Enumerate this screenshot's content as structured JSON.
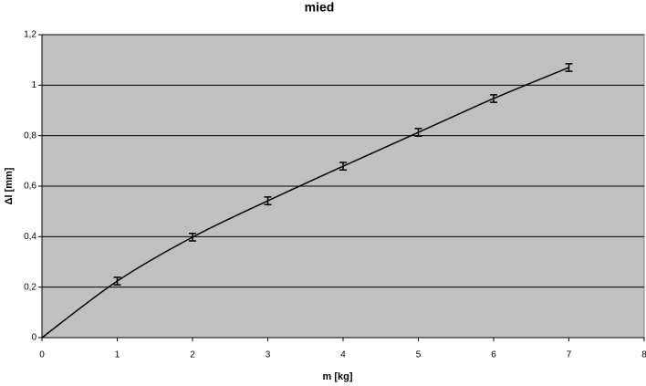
{
  "chart_data": {
    "type": "line",
    "title": "mied",
    "x_label": "m [kg]",
    "y_label": "Δl [mm]",
    "x": [
      0,
      1,
      2,
      3,
      4,
      5,
      6,
      7
    ],
    "series": [
      {
        "name": "mied",
        "color": "#000000",
        "values": [
          0,
          0.224,
          0.398,
          0.542,
          0.679,
          0.813,
          0.947,
          1.07
        ],
        "errors": [
          0,
          0.015,
          0.015,
          0.015,
          0.015,
          0.015,
          0.015,
          0.015
        ]
      }
    ],
    "xlim": [
      0,
      8
    ],
    "xticks": [
      0,
      1,
      2,
      3,
      4,
      5,
      6,
      7,
      8
    ],
    "ylim": [
      0,
      1.2
    ],
    "yticks": [
      0,
      {
        "value": 0.2,
        "label": "0,2"
      },
      {
        "value": 0.4,
        "label": "0,4"
      },
      {
        "value": 0.6,
        "label": "0,6"
      },
      {
        "value": 0.8,
        "label": "0,8"
      },
      1,
      {
        "value": 1.2,
        "label": "1,2"
      }
    ],
    "grid": true,
    "plot_background": "#c0c0c0"
  }
}
